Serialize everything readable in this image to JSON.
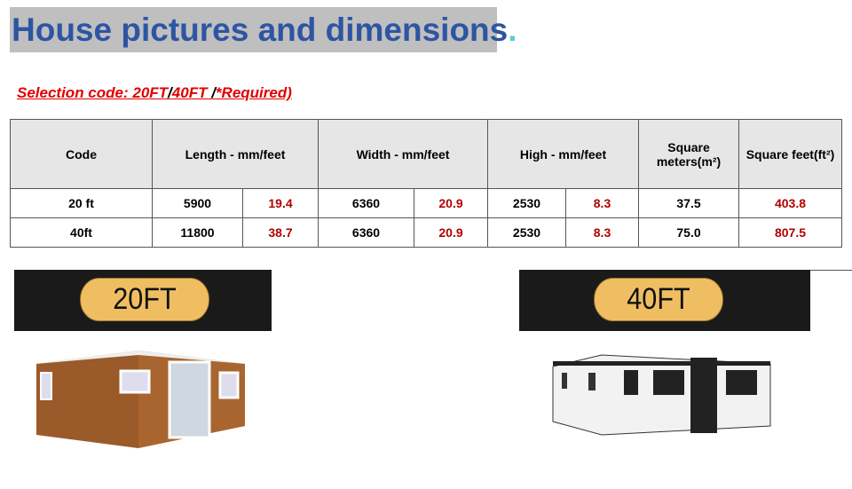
{
  "title": "House pictures and dimensions",
  "title_dot": ".",
  "selection": {
    "prefix": "Selection code: 20FT",
    "slash1": "/",
    "code2": "40FT ",
    "slash2": "/",
    "required": "*Required)"
  },
  "table": {
    "headers": [
      "Code",
      "Length - mm/feet",
      "Width - mm/feet",
      "High - mm/feet",
      "Square meters(m²)",
      "Square feet(ft²)"
    ],
    "rows": [
      [
        "20 ft",
        "5900",
        "19.4",
        "6360",
        "20.9",
        "2530",
        "8.3",
        "37.5",
        "403.8"
      ],
      [
        "40ft",
        "11800",
        "38.7",
        "6360",
        "20.9",
        "2530",
        "8.3",
        "75.0",
        "807.5"
      ]
    ]
  },
  "labels": [
    "20FT",
    "40FT"
  ],
  "colors": {
    "title": "#2e55a2",
    "title_bg": "#bfbfbf",
    "red": "#b00000",
    "pill": "#f0be62"
  }
}
